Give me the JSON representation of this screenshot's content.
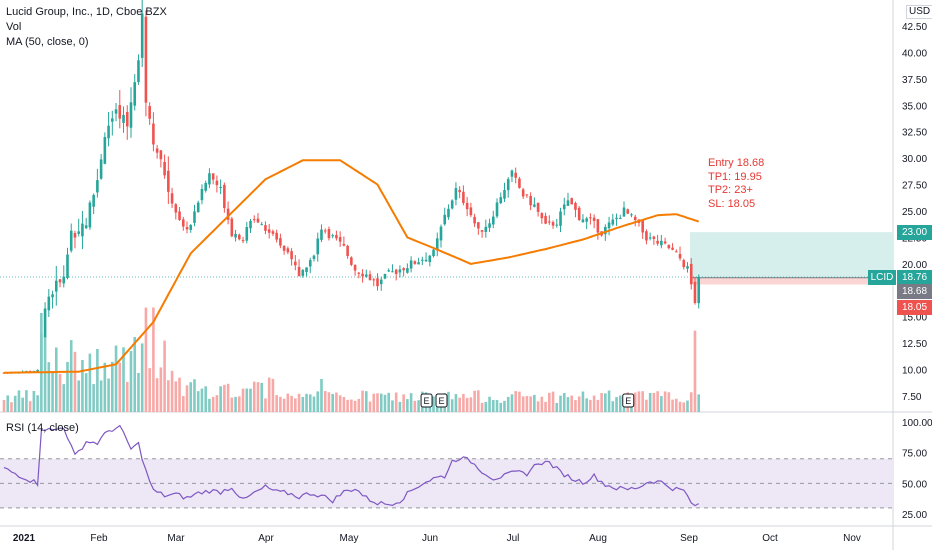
{
  "legend": {
    "title": "Lucid Group, Inc., 1D, Cboe BZX",
    "vol": "Vol",
    "ma": "MA (50, close, 0)"
  },
  "rsi_label": "RSI (14, close)",
  "notes": {
    "entry": "Entry 18.68",
    "tp1": "TP1: 19.95",
    "tp2": "TP2: 23+",
    "sl": "SL: 18.05"
  },
  "currency": "USD",
  "price_tags": {
    "tp2": "23.00",
    "last_symbol": "LCID",
    "last": "18.76",
    "entry": "18.68",
    "sl": "18.05"
  },
  "earnings_marker": "E",
  "colors": {
    "up": "#26a69a",
    "down": "#ef5350",
    "up_volume": "#80cbc4",
    "down_volume": "#f7a9a7",
    "ma": "#f57c00",
    "rsi": "#7e57c2",
    "rsi_band": "#ede7f6",
    "target_zone": "#d7efec",
    "stop_zone": "#fbd5d4",
    "note_text": "#e53935"
  },
  "chart_data": {
    "type": "candlestick",
    "title": "Lucid Group, Inc., 1D, Cboe BZX",
    "price_axis": {
      "ticks": [
        "42.50",
        "40.00",
        "37.50",
        "35.00",
        "32.50",
        "30.00",
        "27.50",
        "25.00",
        "22.50",
        "20.00",
        "17.50",
        "15.00",
        "12.50",
        "10.00",
        "7.50"
      ],
      "ylim": [
        6.5,
        45.5
      ]
    },
    "time_axis": {
      "ticks": [
        "2021",
        "Feb",
        "Mar",
        "Apr",
        "May",
        "Jun",
        "Jul",
        "Aug",
        "Sep",
        "Oct",
        "Nov"
      ]
    },
    "rsi_axis": {
      "ticks": [
        "100.00",
        "75.00",
        "50.00",
        "25.00"
      ],
      "band": [
        30,
        70
      ],
      "midline": 50
    },
    "levels": {
      "tp2": 23.0,
      "last": 18.76,
      "entry": 18.68,
      "sl": 18.05
    },
    "earnings_days": [
      113,
      117,
      167
    ],
    "ma50": [
      [
        0,
        9.7
      ],
      [
        20,
        9.8
      ],
      [
        30,
        10.5
      ],
      [
        40,
        14.5
      ],
      [
        50,
        21.0
      ],
      [
        60,
        24.5
      ],
      [
        70,
        28.0
      ],
      [
        80,
        29.8
      ],
      [
        90,
        29.8
      ],
      [
        100,
        27.5
      ],
      [
        108,
        22.5
      ],
      [
        115,
        21.5
      ],
      [
        125,
        20.0
      ],
      [
        135,
        20.6
      ],
      [
        145,
        21.4
      ],
      [
        155,
        22.3
      ],
      [
        165,
        23.5
      ],
      [
        175,
        24.6
      ],
      [
        180,
        24.7
      ],
      [
        186,
        24.0
      ]
    ],
    "rsi": [
      [
        0,
        62
      ],
      [
        3,
        58
      ],
      [
        6,
        54
      ],
      [
        9,
        50
      ],
      [
        10,
        95
      ],
      [
        13,
        93
      ],
      [
        16,
        96
      ],
      [
        19,
        72
      ],
      [
        22,
        84
      ],
      [
        25,
        83
      ],
      [
        28,
        93
      ],
      [
        31,
        96
      ],
      [
        34,
        78
      ],
      [
        36,
        82
      ],
      [
        38,
        60
      ],
      [
        40,
        44
      ],
      [
        43,
        40
      ],
      [
        46,
        41
      ],
      [
        49,
        38
      ],
      [
        52,
        42
      ],
      [
        55,
        44
      ],
      [
        58,
        43
      ],
      [
        61,
        47
      ],
      [
        64,
        36
      ],
      [
        67,
        42
      ],
      [
        70,
        47
      ],
      [
        73,
        43
      ],
      [
        76,
        42
      ],
      [
        79,
        39
      ],
      [
        82,
        42
      ],
      [
        85,
        40
      ],
      [
        88,
        36
      ],
      [
        91,
        43
      ],
      [
        94,
        46
      ],
      [
        97,
        38
      ],
      [
        100,
        34
      ],
      [
        103,
        33
      ],
      [
        106,
        36
      ],
      [
        109,
        44
      ],
      [
        112,
        50
      ],
      [
        115,
        54
      ],
      [
        118,
        56
      ],
      [
        120,
        68
      ],
      [
        122,
        71
      ],
      [
        125,
        68
      ],
      [
        128,
        60
      ],
      [
        131,
        54
      ],
      [
        134,
        56
      ],
      [
        137,
        59
      ],
      [
        140,
        58
      ],
      [
        143,
        67
      ],
      [
        146,
        67
      ],
      [
        149,
        59
      ],
      [
        152,
        54
      ],
      [
        155,
        51
      ],
      [
        158,
        56
      ],
      [
        161,
        49
      ],
      [
        164,
        46
      ],
      [
        167,
        45
      ],
      [
        170,
        47
      ],
      [
        173,
        52
      ],
      [
        176,
        51
      ],
      [
        179,
        46
      ],
      [
        182,
        44
      ],
      [
        185,
        30
      ],
      [
        186,
        34
      ]
    ],
    "note": "Daily candles, volume and RSI are drawn from a deterministic random walk fitted through the price anchors; approximate."
  }
}
